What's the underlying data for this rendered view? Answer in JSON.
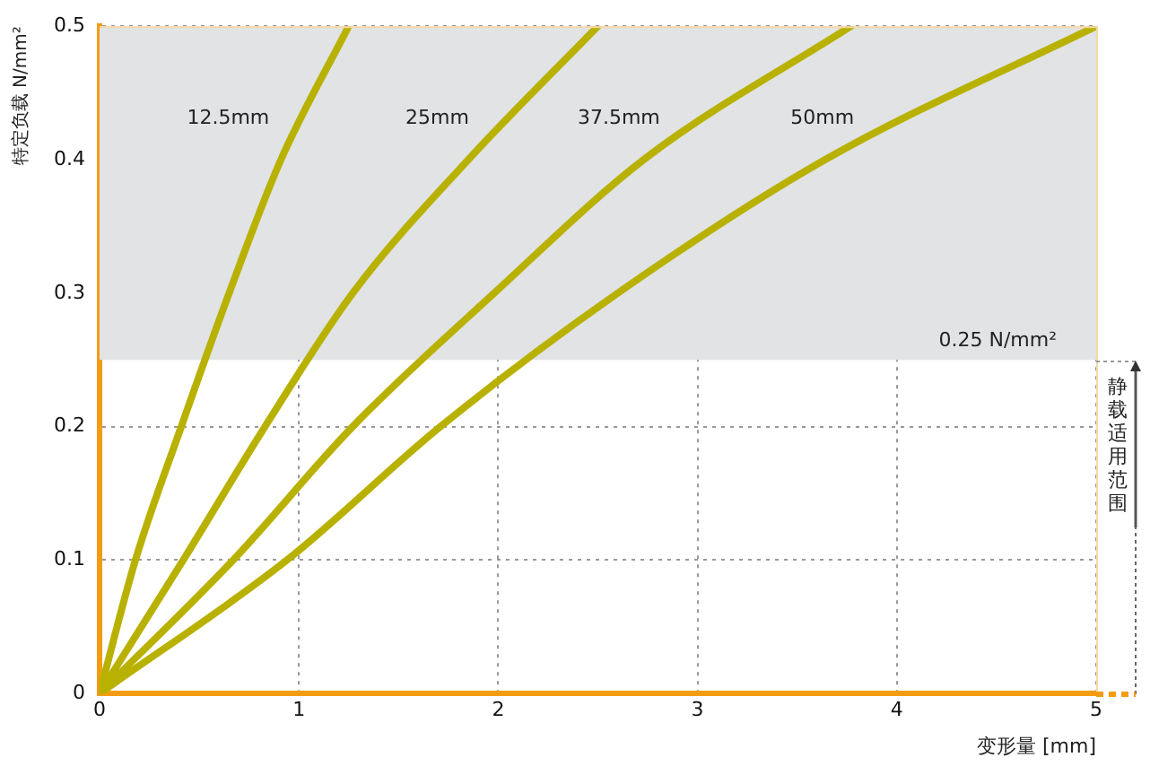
{
  "chart_data": {
    "type": "line",
    "xlabel": "变形量 [mm]",
    "ylabel": "特定负载 N/mm²",
    "xlim": [
      0,
      5
    ],
    "xticks": [
      0,
      1,
      2,
      3,
      4,
      5
    ],
    "ylim": [
      0,
      0.5
    ],
    "yticks": [
      0,
      0.1,
      0.2,
      0.3,
      0.4,
      0.5
    ],
    "grid": true,
    "legend": false,
    "marker": "none",
    "line_style": "solid",
    "series": [
      {
        "name": "12.5mm",
        "color": "#b8b100",
        "x": [
          0,
          0.18,
          0.41,
          0.65,
          0.91,
          1.25
        ],
        "values": [
          0,
          0.1,
          0.2,
          0.3,
          0.4,
          0.5
        ]
      },
      {
        "name": "25mm",
        "color": "#b8b100",
        "x": [
          0,
          0.42,
          0.83,
          1.27,
          1.85,
          2.5
        ],
        "values": [
          0,
          0.1,
          0.2,
          0.3,
          0.4,
          0.5
        ]
      },
      {
        "name": "37.5mm",
        "color": "#b8b100",
        "x": [
          0,
          0.67,
          1.27,
          1.98,
          2.73,
          3.77
        ],
        "values": [
          0,
          0.1,
          0.2,
          0.3,
          0.4,
          0.5
        ]
      },
      {
        "name": "50mm",
        "color": "#b8b100",
        "x": [
          0,
          0.94,
          1.71,
          2.6,
          3.64,
          5
        ],
        "values": [
          0,
          0.1,
          0.2,
          0.3,
          0.4,
          0.5
        ]
      }
    ],
    "bands": [
      {
        "axis": "y",
        "from": 0.25,
        "to": 0.5,
        "label": "0.25 N/mm²",
        "color": "#e1e3e4"
      }
    ],
    "annotations": [
      "静载适用范围"
    ]
  }
}
